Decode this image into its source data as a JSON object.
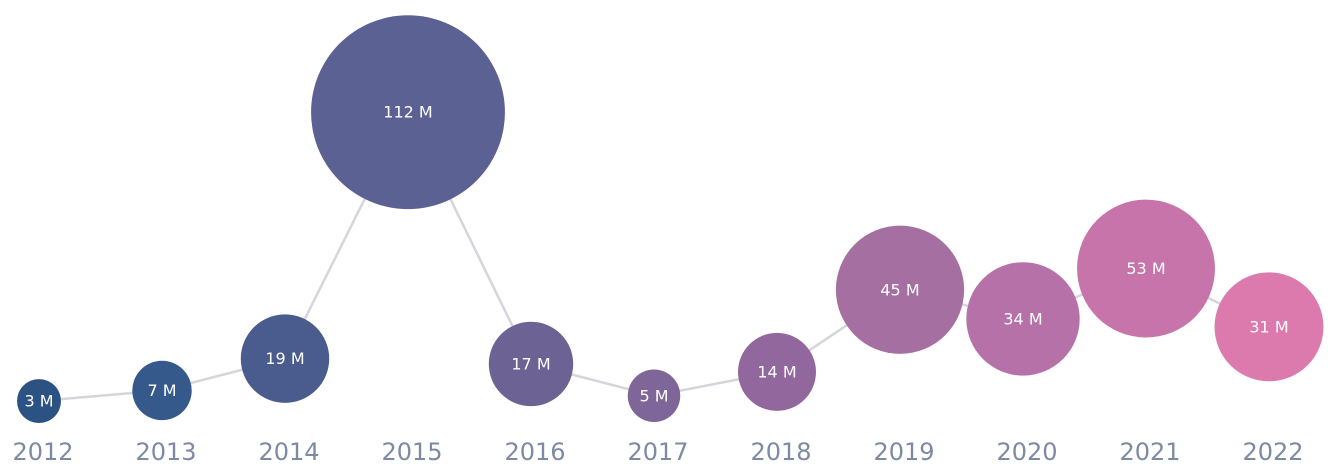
{
  "chart_data": {
    "type": "scatter",
    "subtype": "bubble",
    "title": "",
    "xlabel": "",
    "ylabel": "",
    "unit_suffix": " M",
    "categories": [
      "2012",
      "2013",
      "2014",
      "2015",
      "2016",
      "2017",
      "2018",
      "2019",
      "2020",
      "2021",
      "2022"
    ],
    "values": [
      3,
      7,
      19,
      112,
      17,
      5,
      14,
      45,
      34,
      53,
      31
    ],
    "colors": [
      "#2b5283",
      "#34598a",
      "#4a5b8d",
      "#5c6194",
      "#6c6294",
      "#7f6699",
      "#91679e",
      "#a56fa1",
      "#b672a8",
      "#c774ab",
      "#dc7aae"
    ],
    "line_color": "#d5d5dc",
    "grid": false,
    "legend": "none"
  }
}
